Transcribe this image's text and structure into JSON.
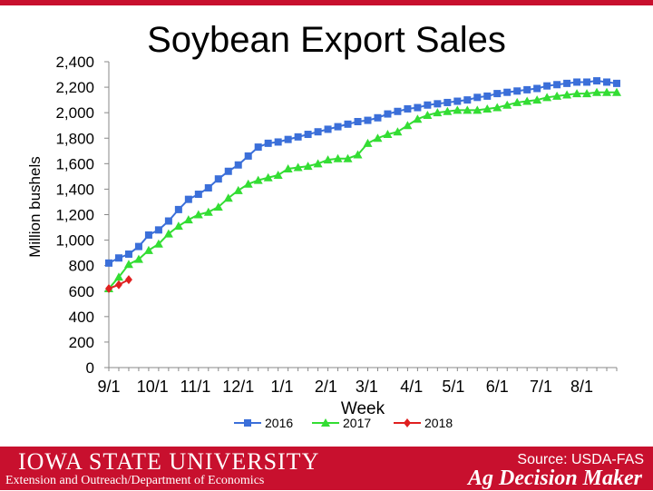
{
  "colors": {
    "footer_bg": "#c8102e",
    "series_2016": "#3b6fd9",
    "series_2017": "#33dd33",
    "series_2018": "#e02020"
  },
  "footer": {
    "university": "IOWA STATE UNIVERSITY",
    "department": "Extension and Outreach/Department of Economics",
    "source": "Source: USDA-FAS",
    "brand": "Ag Decision Maker"
  },
  "chart_data": {
    "type": "line",
    "title": "Soybean Export Sales",
    "xlabel": "Week",
    "ylabel": "Million bushels",
    "ylim": [
      0,
      2400
    ],
    "yticks": [
      0,
      200,
      400,
      600,
      800,
      1000,
      1200,
      1400,
      1600,
      1800,
      2000,
      2200,
      2400
    ],
    "ytick_labels": [
      "0",
      "200",
      "400",
      "600",
      "800",
      "1,000",
      "1,200",
      "1,400",
      "1,600",
      "1,800",
      "2,000",
      "2,200",
      "2,400"
    ],
    "xtick_labels": [
      "9/1",
      "10/1",
      "11/1",
      "12/1",
      "1/1",
      "2/1",
      "3/1",
      "4/1",
      "5/1",
      "6/1",
      "7/1",
      "8/1"
    ],
    "xtick_weeks": [
      0,
      4.4,
      8.7,
      13,
      17.4,
      21.8,
      25.9,
      30.4,
      34.6,
      39,
      43.4,
      47.5
    ],
    "week_count": 52,
    "grid": false,
    "legend_position": "bottom",
    "series": [
      {
        "name": "2016",
        "marker": "square",
        "values": [
          820,
          860,
          890,
          950,
          1040,
          1080,
          1150,
          1240,
          1320,
          1360,
          1410,
          1480,
          1540,
          1590,
          1660,
          1730,
          1760,
          1770,
          1790,
          1810,
          1830,
          1850,
          1870,
          1890,
          1910,
          1930,
          1940,
          1960,
          1990,
          2010,
          2030,
          2040,
          2060,
          2070,
          2080,
          2090,
          2100,
          2120,
          2130,
          2150,
          2160,
          2170,
          2180,
          2190,
          2210,
          2220,
          2230,
          2240,
          2240,
          2250,
          2240,
          2230
        ]
      },
      {
        "name": "2017",
        "marker": "triangle",
        "values": [
          620,
          710,
          810,
          850,
          920,
          970,
          1050,
          1110,
          1160,
          1200,
          1220,
          1260,
          1330,
          1390,
          1440,
          1470,
          1490,
          1510,
          1560,
          1570,
          1580,
          1600,
          1630,
          1640,
          1640,
          1670,
          1760,
          1800,
          1830,
          1850,
          1900,
          1950,
          1980,
          2000,
          2010,
          2020,
          2020,
          2020,
          2030,
          2040,
          2060,
          2080,
          2090,
          2100,
          2120,
          2130,
          2140,
          2150,
          2150,
          2160,
          2160,
          2160
        ]
      },
      {
        "name": "2018",
        "marker": "diamond",
        "values": [
          620,
          650,
          690
        ]
      }
    ]
  }
}
